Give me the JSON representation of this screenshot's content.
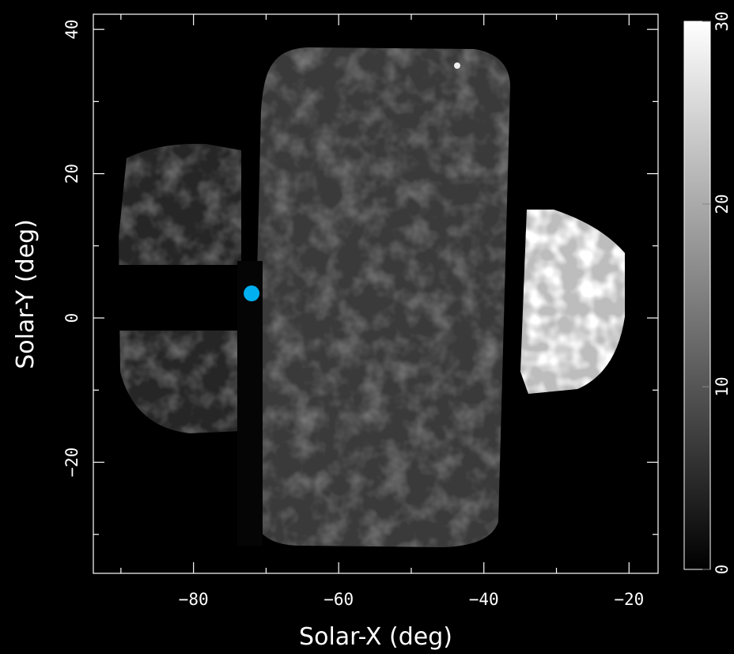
{
  "chart_data": {
    "type": "image",
    "xlabel": "Solar-X (deg)",
    "ylabel": "Solar-Y (deg)",
    "xlim": [
      -93.8,
      -16
    ],
    "ylim": [
      -35.4,
      42.1
    ],
    "xticks": [
      {
        "value": -80,
        "label": "−80"
      },
      {
        "value": -60,
        "label": "−60"
      },
      {
        "value": -40,
        "label": "−40"
      },
      {
        "value": -20,
        "label": "−20"
      }
    ],
    "yticks": [
      {
        "value": -20,
        "label": "−20"
      },
      0,
      20,
      40
    ],
    "xminor": [
      -90,
      -70,
      -50,
      -30
    ],
    "yminor": [
      -30,
      -10,
      10,
      30
    ],
    "markers": [
      {
        "x": -72,
        "y": 3.4,
        "color": "#00b0f0"
      }
    ],
    "colorbar": {
      "lim": [
        0,
        30
      ],
      "ticks": [
        0,
        10,
        20,
        30
      ],
      "colors": [
        "#000000",
        "#ffffff"
      ]
    }
  }
}
